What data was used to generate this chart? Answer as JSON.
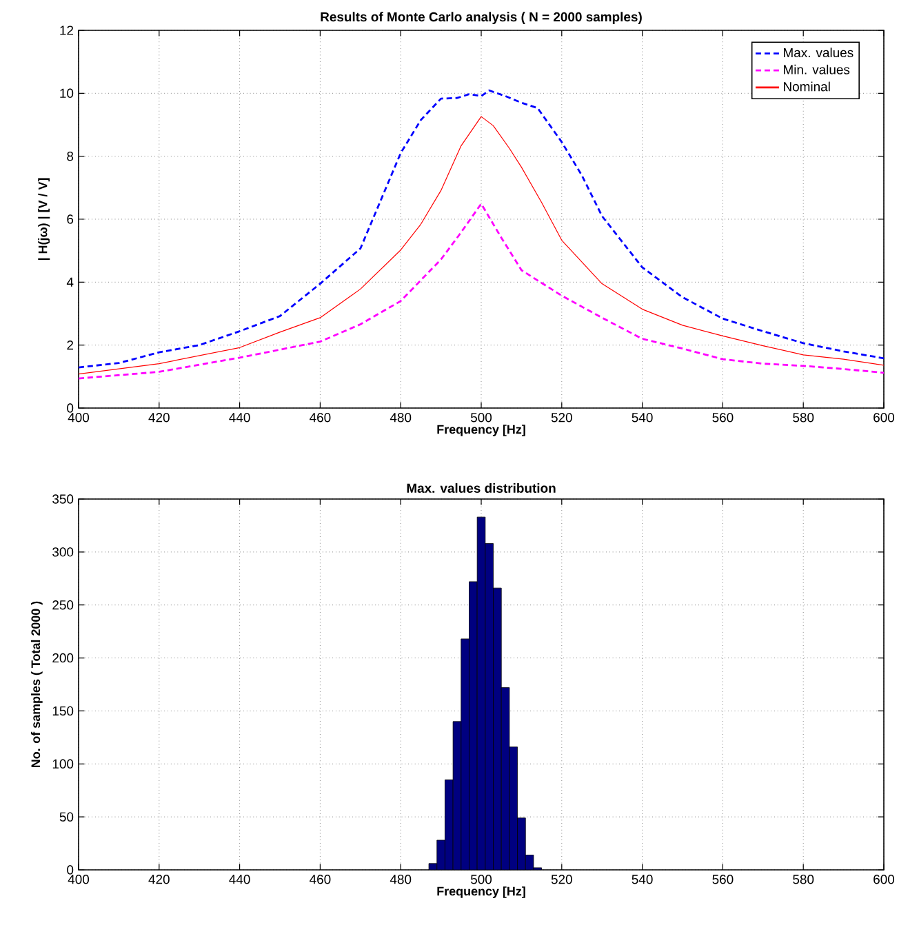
{
  "chart_data": [
    {
      "type": "line",
      "title": "Results of Monte Carlo analysis ( N = 2000 samples)",
      "xlabel": "Frequency [Hz]",
      "ylabel": "| H(jω) |    [V / V]",
      "xlim": [
        400,
        600
      ],
      "ylim": [
        0,
        12
      ],
      "xticks": [
        400,
        420,
        440,
        460,
        480,
        500,
        520,
        540,
        560,
        580,
        600
      ],
      "yticks": [
        0,
        2,
        4,
        6,
        8,
        10,
        12
      ],
      "grid": true,
      "legend": "top right",
      "series": [
        {
          "name": "Max. values",
          "color": "#0000ff",
          "line_style": "dashed",
          "x": [
            400,
            410,
            420,
            430,
            440,
            450,
            460,
            470,
            480,
            485,
            490,
            494,
            497,
            500,
            502,
            506,
            510,
            514,
            520,
            525,
            530,
            540,
            550,
            560,
            570,
            580,
            590,
            600
          ],
          "values": [
            1.29,
            1.43,
            1.77,
            2.0,
            2.44,
            2.92,
            3.95,
            5.07,
            8.1,
            9.15,
            9.83,
            9.85,
            9.97,
            9.91,
            10.09,
            9.91,
            9.7,
            9.53,
            8.45,
            7.39,
            6.1,
            4.47,
            3.52,
            2.84,
            2.44,
            2.06,
            1.8,
            1.58
          ]
        },
        {
          "name": "Min. values",
          "color": "#ff00ff",
          "line_style": "dashed",
          "x": [
            400,
            420,
            440,
            460,
            470,
            480,
            490,
            495,
            500,
            505,
            510,
            520,
            530,
            540,
            550,
            560,
            570,
            580,
            590,
            600
          ],
          "values": [
            0.94,
            1.15,
            1.6,
            2.11,
            2.66,
            3.4,
            4.72,
            5.58,
            6.49,
            5.41,
            4.38,
            3.57,
            2.87,
            2.2,
            1.89,
            1.55,
            1.41,
            1.34,
            1.24,
            1.12
          ]
        },
        {
          "name": "Nominal",
          "color": "#ff0000",
          "line_style": "solid",
          "x": [
            400,
            420,
            440,
            450,
            460,
            470,
            480,
            485,
            490,
            495,
            500,
            503,
            507,
            510,
            515,
            520,
            530,
            540,
            550,
            560,
            570,
            580,
            590,
            600
          ],
          "values": [
            1.08,
            1.41,
            1.92,
            2.41,
            2.87,
            3.78,
            5.02,
            5.84,
            6.91,
            8.33,
            9.26,
            8.97,
            8.25,
            7.65,
            6.53,
            5.33,
            3.95,
            3.14,
            2.63,
            2.29,
            1.98,
            1.69,
            1.55,
            1.36
          ]
        }
      ]
    },
    {
      "type": "histogram",
      "title": "Max. values distribution",
      "xlabel": "Frequency [Hz]",
      "ylabel": "No. of samples ( Total 2000 )",
      "xlim": [
        400,
        600
      ],
      "ylim": [
        0,
        350
      ],
      "xticks": [
        400,
        420,
        440,
        460,
        480,
        500,
        520,
        540,
        560,
        580,
        600
      ],
      "yticks": [
        0,
        50,
        100,
        150,
        200,
        250,
        300,
        350
      ],
      "grid": true,
      "color": "#000080",
      "bins": [
        487,
        489,
        491,
        493,
        495,
        497,
        499,
        501,
        503,
        505,
        507,
        509,
        511,
        513,
        515
      ],
      "values": [
        6,
        28,
        85,
        140,
        218,
        272,
        333,
        308,
        266,
        172,
        116,
        49,
        14,
        2
      ]
    }
  ]
}
